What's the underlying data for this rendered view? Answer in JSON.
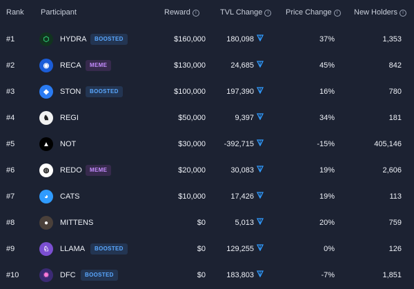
{
  "header": {
    "rank": "Rank",
    "participant": "Participant",
    "reward": "Reward",
    "tvl": "TVL Change",
    "price": "Price Change",
    "holders": "New Holders"
  },
  "rows": [
    {
      "rank": "#1",
      "name": "HYDRA",
      "badge": "BOOSTED",
      "reward": "$160,000",
      "tvl": "180,098",
      "price": "37%",
      "holders": "1,353"
    },
    {
      "rank": "#2",
      "name": "RECA",
      "badge": "MEME",
      "reward": "$130,000",
      "tvl": "24,685",
      "price": "45%",
      "holders": "842"
    },
    {
      "rank": "#3",
      "name": "STON",
      "badge": "BOOSTED",
      "reward": "$100,000",
      "tvl": "197,390",
      "price": "16%",
      "holders": "780"
    },
    {
      "rank": "#4",
      "name": "REGI",
      "badge": "",
      "reward": "$50,000",
      "tvl": "9,397",
      "price": "34%",
      "holders": "181"
    },
    {
      "rank": "#5",
      "name": "NOT",
      "badge": "",
      "reward": "$30,000",
      "tvl": "-392,715",
      "price": "-15%",
      "holders": "405,146"
    },
    {
      "rank": "#6",
      "name": "REDO",
      "badge": "MEME",
      "reward": "$20,000",
      "tvl": "30,083",
      "price": "19%",
      "holders": "2,606"
    },
    {
      "rank": "#7",
      "name": "CATS",
      "badge": "",
      "reward": "$10,000",
      "tvl": "17,426",
      "price": "19%",
      "holders": "113"
    },
    {
      "rank": "#8",
      "name": "MITTENS",
      "badge": "",
      "reward": "$0",
      "tvl": "5,013",
      "price": "20%",
      "holders": "759"
    },
    {
      "rank": "#9",
      "name": "LLAMA",
      "badge": "BOOSTED",
      "reward": "$0",
      "tvl": "129,255",
      "price": "0%",
      "holders": "126"
    },
    {
      "rank": "#10",
      "name": "DFC",
      "badge": "BOOSTED",
      "reward": "$0",
      "tvl": "183,803",
      "price": "-7%",
      "holders": "1,851"
    }
  ],
  "icons": {
    "info": "info-icon",
    "ton": "ton-diamond-icon"
  },
  "colors": {
    "background": "#1c2232",
    "boosted": "#5aa8ff",
    "meme": "#c58cff",
    "ton": "#2f9bff"
  }
}
